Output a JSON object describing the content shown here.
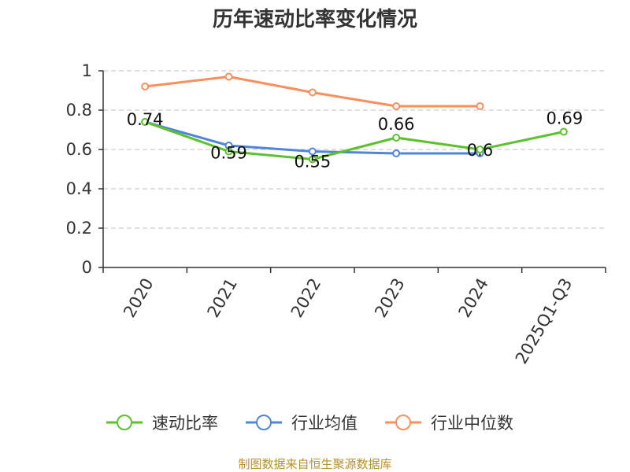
{
  "chart_data": {
    "type": "line",
    "title": "历年速动比率变化情况",
    "categories": [
      "2020",
      "2021",
      "2022",
      "2023",
      "2024",
      "2025Q1-Q3"
    ],
    "ylim": [
      0,
      1
    ],
    "yticks": [
      "0",
      "0.2",
      "0.4",
      "0.6",
      "0.8",
      "1"
    ],
    "grid": true,
    "legend_position": "bottom",
    "series": [
      {
        "name": "速动比率",
        "color": "#5cc12c",
        "values": [
          0.74,
          0.59,
          0.55,
          0.66,
          0.6,
          0.69
        ],
        "labels": [
          "0.74",
          "0.59",
          "0.55",
          "0.66",
          "0.6",
          "0.69"
        ]
      },
      {
        "name": "行业均值",
        "color": "#4f86d9",
        "values": [
          0.74,
          0.62,
          0.59,
          0.58,
          0.58,
          null
        ]
      },
      {
        "name": "行业中位数",
        "color": "#f78f5e",
        "values": [
          0.92,
          0.97,
          0.89,
          0.82,
          0.82,
          null
        ]
      }
    ]
  },
  "source_text": "制图数据来自恒生聚源数据库"
}
